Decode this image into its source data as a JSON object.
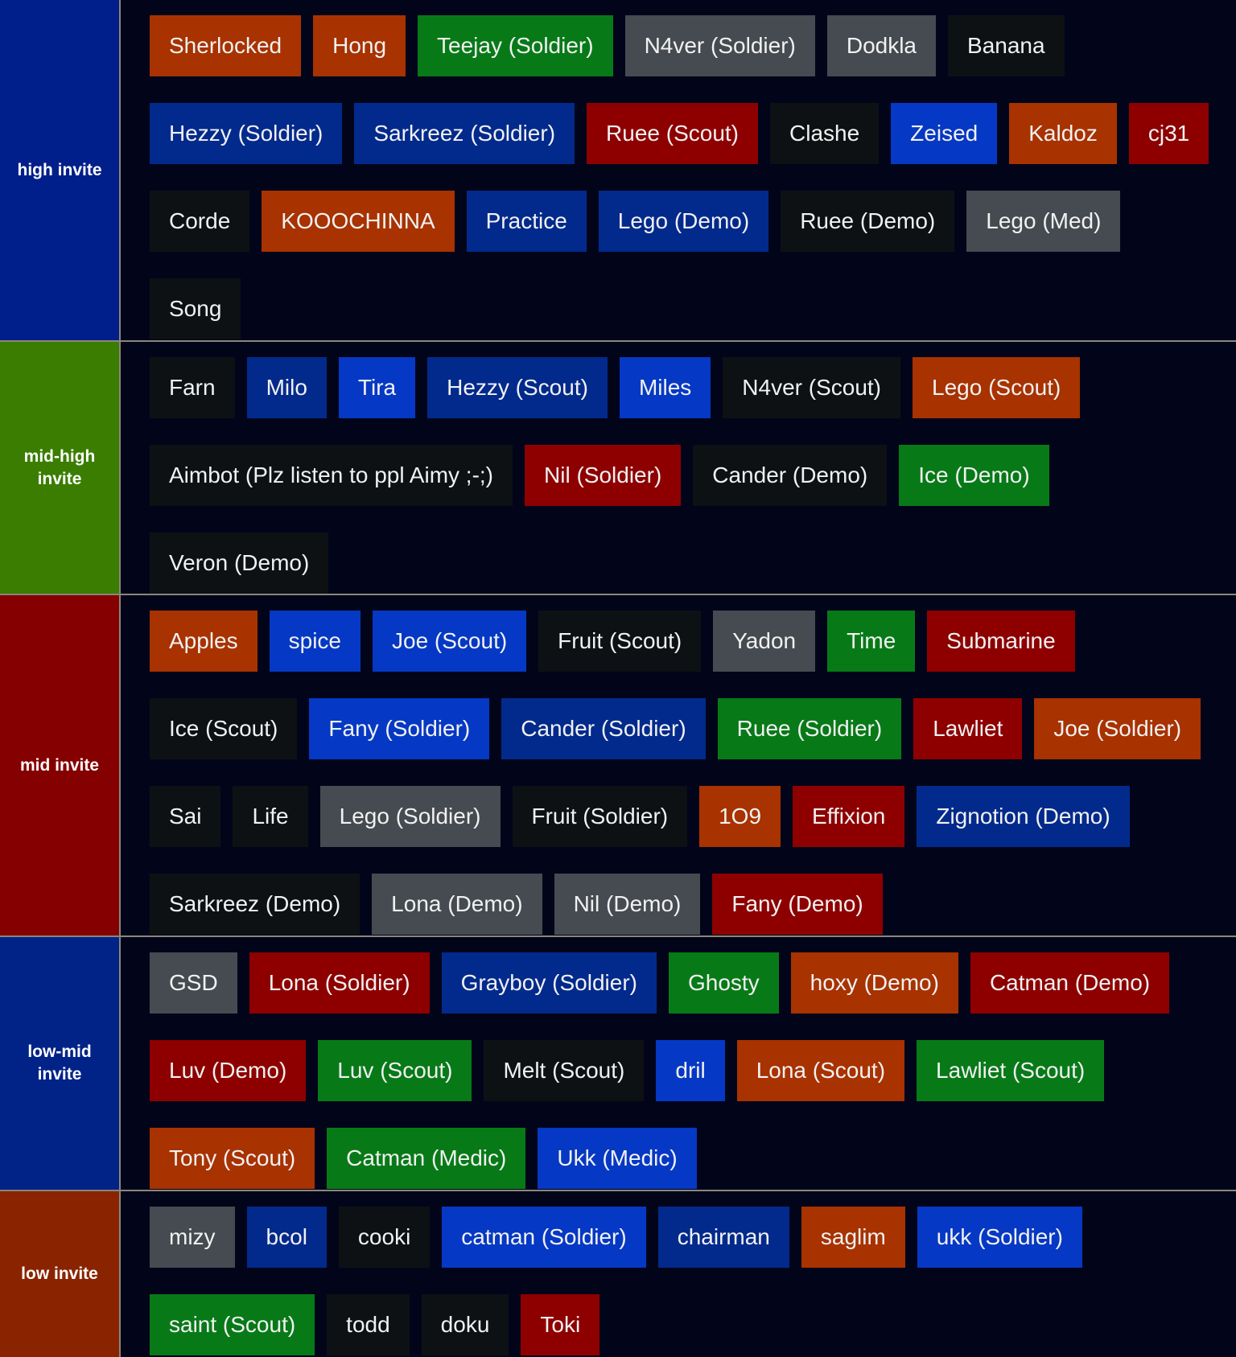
{
  "colors": {
    "orange": "#a83200",
    "green": "#077a17",
    "gray": "#454b50",
    "dark": "#0d1114",
    "navy": "#022a8c",
    "blue": "#0538c4",
    "red": "#8e0000",
    "background": "#02051a"
  },
  "tiers": [
    {
      "label": "high invite",
      "color": "#011f8a",
      "rows": [
        [
          [
            "Sherlocked",
            "orange"
          ],
          [
            "Hong",
            "orange"
          ],
          [
            "Teejay (Soldier)",
            "green"
          ],
          [
            "N4ver (Soldier)",
            "gray"
          ],
          [
            "Dodkla",
            "gray"
          ],
          [
            "Banana",
            "dark"
          ]
        ],
        [
          [
            "Hezzy (Soldier)",
            "navy"
          ],
          [
            "Sarkreez (Soldier)",
            "navy"
          ],
          [
            "Ruee (Scout)",
            "red"
          ],
          [
            "Clashe",
            "dark"
          ],
          [
            "Zeised",
            "blue"
          ],
          [
            "Kaldoz",
            "orange"
          ],
          [
            "cj31",
            "red"
          ]
        ],
        [
          [
            "Corde",
            "dark"
          ],
          [
            "KOOOCHINNA",
            "orange"
          ],
          [
            "Practice",
            "navy"
          ],
          [
            "Lego (Demo)",
            "navy"
          ],
          [
            "Ruee (Demo)",
            "dark"
          ],
          [
            "Lego (Med)",
            "gray"
          ]
        ],
        [
          [
            "Song",
            "dark"
          ]
        ]
      ]
    },
    {
      "label": "mid-high invite",
      "color": "#3a7d00",
      "rows": [
        [
          [
            "Farn",
            "dark"
          ],
          [
            "Milo",
            "navy"
          ],
          [
            "Tira",
            "blue"
          ],
          [
            "Hezzy (Scout)",
            "navy"
          ],
          [
            "Miles",
            "blue"
          ],
          [
            "N4ver (Scout)",
            "dark"
          ],
          [
            "Lego (Scout)",
            "orange"
          ]
        ],
        [
          [
            "Aimbot (Plz listen to ppl Aimy ;-;)",
            "dark"
          ],
          [
            "Nil (Soldier)",
            "red"
          ],
          [
            "Cander (Demo)",
            "dark"
          ],
          [
            "Ice (Demo)",
            "green"
          ]
        ],
        [
          [
            "Veron (Demo)",
            "dark"
          ]
        ]
      ]
    },
    {
      "label": "mid invite",
      "color": "#850000",
      "rows": [
        [
          [
            "Apples",
            "orange"
          ],
          [
            "spice",
            "blue"
          ],
          [
            "Joe (Scout)",
            "blue"
          ],
          [
            "Fruit (Scout)",
            "dark"
          ],
          [
            "Yadon",
            "gray"
          ],
          [
            "Time",
            "green"
          ],
          [
            "Submarine",
            "red"
          ]
        ],
        [
          [
            "Ice (Scout)",
            "dark"
          ],
          [
            "Fany (Soldier)",
            "blue"
          ],
          [
            "Cander (Soldier)",
            "navy"
          ],
          [
            "Ruee (Soldier)",
            "green"
          ],
          [
            "Lawliet",
            "red"
          ],
          [
            "Joe (Soldier)",
            "orange"
          ]
        ],
        [
          [
            "Sai",
            "dark"
          ],
          [
            "Life",
            "dark"
          ],
          [
            "Lego (Soldier)",
            "gray"
          ],
          [
            "Fruit (Soldier)",
            "dark"
          ],
          [
            "1O9",
            "orange"
          ],
          [
            "Effixion",
            "red"
          ],
          [
            "Zignotion (Demo)",
            "navy"
          ]
        ],
        [
          [
            "Sarkreez (Demo)",
            "dark"
          ],
          [
            "Lona (Demo)",
            "gray"
          ],
          [
            "Nil (Demo)",
            "gray"
          ],
          [
            "Fany (Demo)",
            "red"
          ]
        ]
      ]
    },
    {
      "label": "low-mid invite",
      "color": "#012387",
      "rows": [
        [
          [
            "GSD",
            "gray"
          ],
          [
            "Lona (Soldier)",
            "red"
          ],
          [
            "Grayboy (Soldier)",
            "navy"
          ],
          [
            "Ghosty",
            "green"
          ],
          [
            "hoxy (Demo)",
            "orange"
          ],
          [
            "Catman (Demo)",
            "red"
          ]
        ],
        [
          [
            "Luv (Demo)",
            "red"
          ],
          [
            "Luv (Scout)",
            "green"
          ],
          [
            "Melt (Scout)",
            "dark"
          ],
          [
            "dril",
            "blue"
          ],
          [
            "Lona (Scout)",
            "orange"
          ],
          [
            "Lawliet (Scout)",
            "green"
          ]
        ],
        [
          [
            "Tony (Scout)",
            "orange"
          ],
          [
            "Catman (Medic)",
            "green"
          ],
          [
            "Ukk (Medic)",
            "blue"
          ]
        ]
      ]
    },
    {
      "label": "low invite",
      "color": "#8a2400",
      "rows": [
        [
          [
            "mizy",
            "gray"
          ],
          [
            "bcol",
            "navy"
          ],
          [
            "cooki",
            "dark"
          ],
          [
            "catman (Soldier)",
            "blue"
          ],
          [
            "chairman",
            "navy"
          ],
          [
            "saglim",
            "orange"
          ],
          [
            "ukk (Soldier)",
            "blue"
          ]
        ],
        [
          [
            "saint (Scout)",
            "green"
          ],
          [
            "todd",
            "dark"
          ],
          [
            "doku",
            "dark"
          ],
          [
            "Toki",
            "red"
          ]
        ]
      ]
    }
  ]
}
